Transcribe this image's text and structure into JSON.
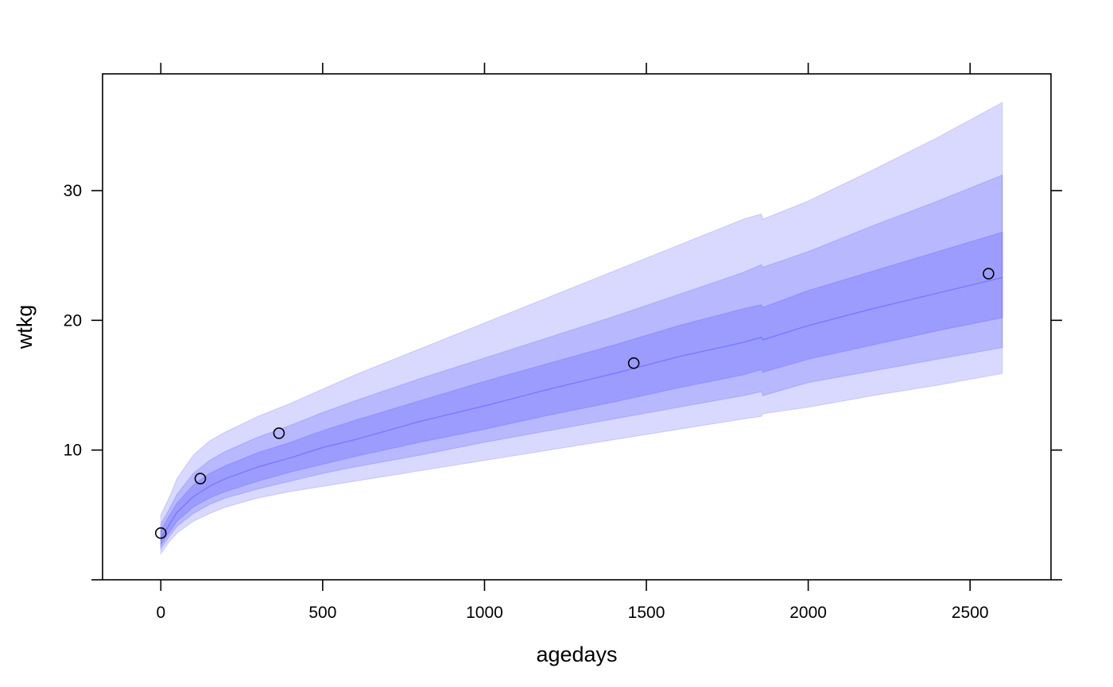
{
  "chart_data": {
    "type": "area",
    "xlabel": "agedays",
    "ylabel": "wtkg",
    "xlim": [
      -180,
      2750
    ],
    "ylim": [
      0,
      39
    ],
    "xticks": [
      0,
      500,
      1000,
      1500,
      2000,
      2500
    ],
    "yticks": [
      10,
      20,
      30
    ],
    "grid": false,
    "legend": "none",
    "band_color": "#0000ff",
    "band_opacity": 0.15,
    "point_color": "#000000",
    "bands_x": [
      0,
      25,
      50,
      100,
      150,
      200,
      300,
      400,
      500,
      600,
      800,
      1000,
      1200,
      1400,
      1600,
      1800,
      1855,
      1860,
      2000,
      2200,
      2400,
      2600
    ],
    "bands": [
      {
        "lower": [
          2.0,
          2.9,
          3.6,
          4.5,
          5.1,
          5.6,
          6.3,
          6.8,
          7.2,
          7.6,
          8.4,
          9.2,
          10.0,
          10.8,
          11.6,
          12.4,
          12.6,
          12.8,
          13.3,
          14.2,
          15.0,
          15.9
        ],
        "upper": [
          5.0,
          6.3,
          7.8,
          9.6,
          10.7,
          11.4,
          12.6,
          13.6,
          14.7,
          15.8,
          17.8,
          19.8,
          21.8,
          23.8,
          25.8,
          27.8,
          28.2,
          27.8,
          29.2,
          31.6,
          34.1,
          36.8
        ]
      },
      {
        "lower": [
          2.4,
          3.3,
          4.1,
          5.1,
          5.8,
          6.3,
          7.0,
          7.6,
          8.2,
          8.7,
          9.6,
          10.6,
          11.5,
          12.4,
          13.3,
          14.2,
          14.5,
          14.2,
          15.2,
          16.1,
          17.0,
          17.9
        ],
        "upper": [
          4.3,
          5.4,
          6.6,
          8.2,
          9.2,
          9.9,
          11.0,
          11.9,
          12.9,
          13.8,
          15.5,
          17.1,
          18.7,
          20.3,
          22.0,
          23.7,
          24.3,
          24.1,
          25.3,
          27.3,
          29.2,
          31.2
        ]
      },
      {
        "lower": [
          2.7,
          3.6,
          4.5,
          5.6,
          6.3,
          6.8,
          7.6,
          8.3,
          8.9,
          9.5,
          10.6,
          11.6,
          12.7,
          13.7,
          14.8,
          15.8,
          16.2,
          16.0,
          17.0,
          18.1,
          19.2,
          20.2
        ],
        "upper": [
          3.8,
          4.9,
          5.9,
          7.3,
          8.2,
          8.8,
          9.8,
          10.6,
          11.5,
          12.3,
          13.8,
          15.3,
          16.7,
          18.1,
          19.6,
          20.9,
          21.2,
          21.0,
          22.3,
          23.8,
          25.3,
          26.8
        ]
      }
    ],
    "median": [
      3.2,
      4.2,
      5.2,
      6.4,
      7.2,
      7.8,
      8.7,
      9.4,
      10.2,
      10.8,
      12.2,
      13.4,
      14.7,
      15.9,
      17.2,
      18.3,
      18.7,
      18.5,
      19.6,
      20.9,
      22.1,
      23.3
    ],
    "points": [
      {
        "x": 0,
        "y": 3.6
      },
      {
        "x": 122,
        "y": 7.8
      },
      {
        "x": 365,
        "y": 11.3
      },
      {
        "x": 1461,
        "y": 16.7
      },
      {
        "x": 2557,
        "y": 23.6
      }
    ]
  }
}
